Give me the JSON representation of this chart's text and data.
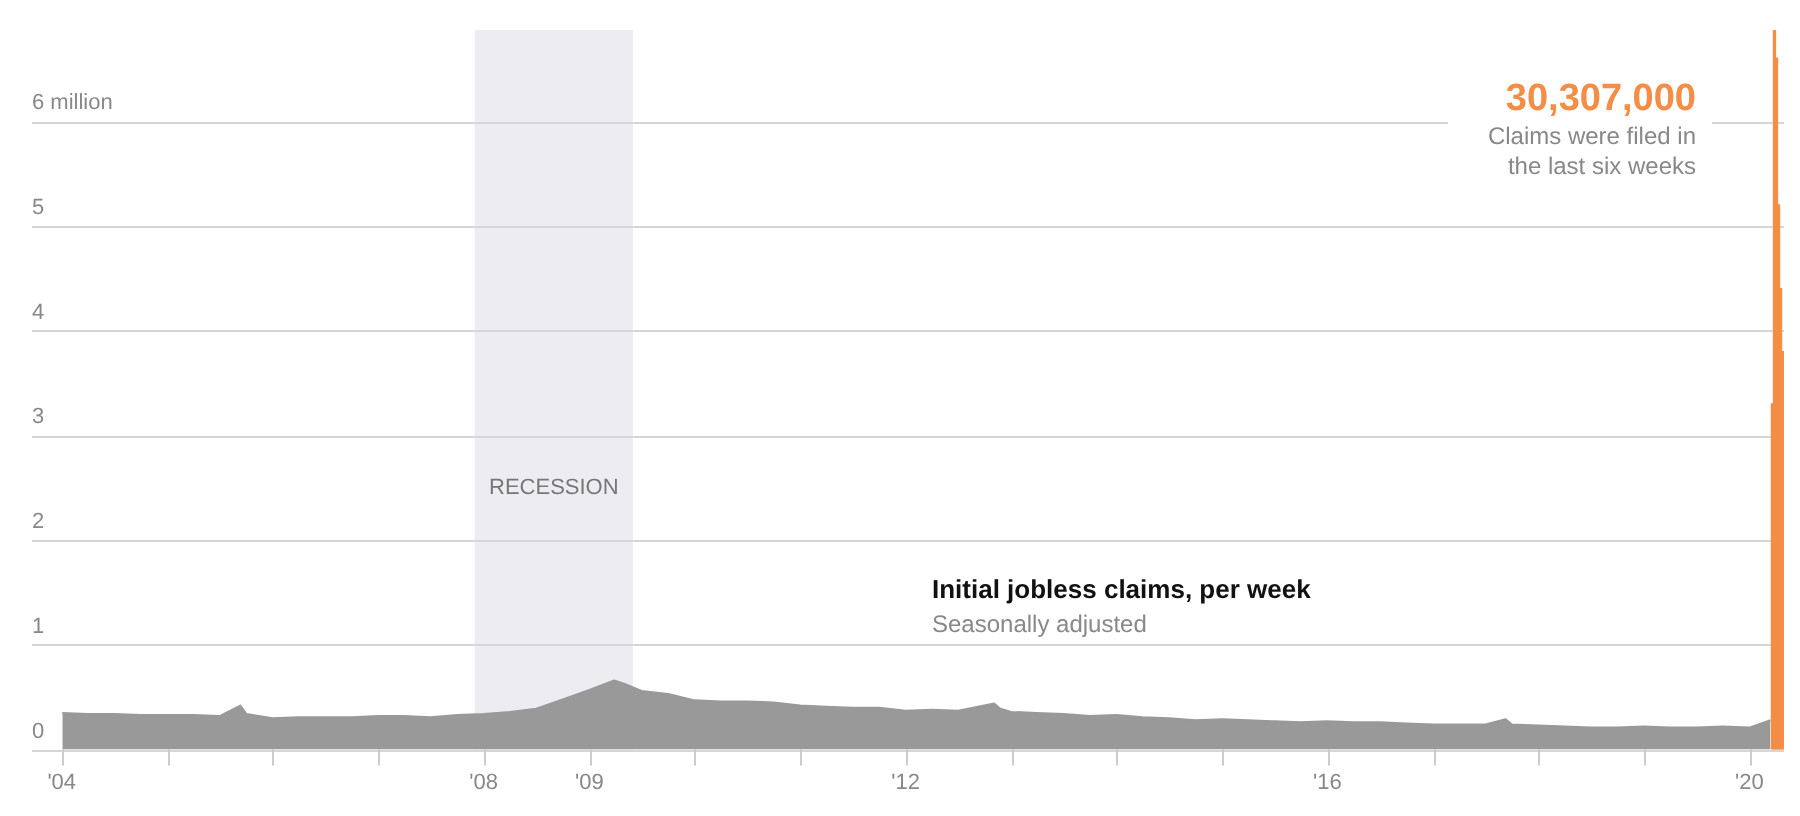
{
  "chart_data": {
    "type": "area",
    "title": "Initial jobless claims, per week",
    "subtitle": "Seasonally adjusted",
    "annotations": [
      "30,307,000",
      "Claims were filed in",
      "the last six weeks"
    ],
    "series": [
      {
        "color": "#999999",
        "x": [
          "2004-01-03",
          "2004-04",
          "2004-07",
          "2004-10",
          "2005-01",
          "2005-04",
          "2005-07",
          "2005-09-10",
          "2005-09-24",
          "2005-10",
          "2006-01",
          "2006-04",
          "2006-07",
          "2006-10",
          "2007-01",
          "2007-04",
          "2007-07",
          "2007-10",
          "2008-01",
          "2008-04",
          "2008-07",
          "2008-10",
          "2009-01",
          "2009-03-28",
          "2009-05",
          "2009-07",
          "2009-10",
          "2010-01",
          "2010-04",
          "2010-07",
          "2010-10",
          "2011-01",
          "2011-04",
          "2011-07",
          "2011-10",
          "2012-01",
          "2012-04",
          "2012-07",
          "2012-11-03",
          "2012-11-24",
          "2013-01",
          "2013-04",
          "2013-07",
          "2013-10",
          "2014-01",
          "2014-04",
          "2014-07",
          "2014-10",
          "2015-01",
          "2015-04",
          "2015-07",
          "2015-10",
          "2016-01",
          "2016-04",
          "2016-07",
          "2016-10",
          "2017-01",
          "2017-04",
          "2017-07",
          "2017-09-09",
          "2017-10",
          "2018-01",
          "2018-04",
          "2018-07",
          "2018-10",
          "2019-01",
          "2019-04",
          "2019-07",
          "2019-10",
          "2020-01",
          "2020-03-14"
        ],
        "values": [
          0.35,
          0.34,
          0.34,
          0.33,
          0.33,
          0.33,
          0.32,
          0.42,
          0.37,
          0.34,
          0.3,
          0.31,
          0.31,
          0.31,
          0.32,
          0.32,
          0.31,
          0.33,
          0.34,
          0.36,
          0.39,
          0.48,
          0.57,
          0.66,
          0.63,
          0.56,
          0.53,
          0.47,
          0.46,
          0.46,
          0.45,
          0.42,
          0.41,
          0.4,
          0.4,
          0.37,
          0.38,
          0.37,
          0.44,
          0.39,
          0.36,
          0.35,
          0.34,
          0.32,
          0.33,
          0.31,
          0.3,
          0.28,
          0.29,
          0.28,
          0.27,
          0.26,
          0.27,
          0.26,
          0.26,
          0.25,
          0.24,
          0.24,
          0.24,
          0.29,
          0.24,
          0.23,
          0.22,
          0.21,
          0.21,
          0.22,
          0.21,
          0.21,
          0.22,
          0.21,
          0.28
        ]
      },
      {
        "type": "bar",
        "color": "#f48d45",
        "x": [
          "2020-03-21",
          "2020-03-28",
          "2020-04-04",
          "2020-04-11",
          "2020-04-18",
          "2020-04-25"
        ],
        "values": [
          3.3,
          6.87,
          6.6,
          5.2,
          4.4,
          3.8
        ]
      }
    ],
    "xlim": [
      "2003-09-20",
      "2020-04-30"
    ],
    "xticks": [
      {
        "value": "2004-01-01",
        "label": "'04"
      },
      {
        "value": "2005-01-01",
        "label": null
      },
      {
        "value": "2006-01-01",
        "label": null
      },
      {
        "value": "2007-01-01",
        "label": null
      },
      {
        "value": "2008-01-01",
        "label": "'08"
      },
      {
        "value": "2009-01-01",
        "label": "'09"
      },
      {
        "value": "2010-01-01",
        "label": null
      },
      {
        "value": "2011-01-01",
        "label": null
      },
      {
        "value": "2012-01-01",
        "label": "'12"
      },
      {
        "value": "2013-01-01",
        "label": null
      },
      {
        "value": "2014-01-01",
        "label": null
      },
      {
        "value": "2015-01-01",
        "label": null
      },
      {
        "value": "2016-01-01",
        "label": "'16"
      },
      {
        "value": "2017-01-01",
        "label": null
      },
      {
        "value": "2018-01-01",
        "label": null
      },
      {
        "value": "2019-01-01",
        "label": null
      },
      {
        "value": "2020-01-01",
        "label": "'20"
      }
    ],
    "ylim": [
      0,
      6.87
    ],
    "yticks": [
      0,
      1,
      2,
      3,
      4,
      5,
      {
        "value": 6,
        "label": "6 million"
      }
    ],
    "bands": [
      {
        "axis": "x",
        "from": "2007-12",
        "to": "2009-06",
        "label": "RECESSION",
        "color": "#ededf1"
      }
    ],
    "grid": "y",
    "legend": false
  }
}
